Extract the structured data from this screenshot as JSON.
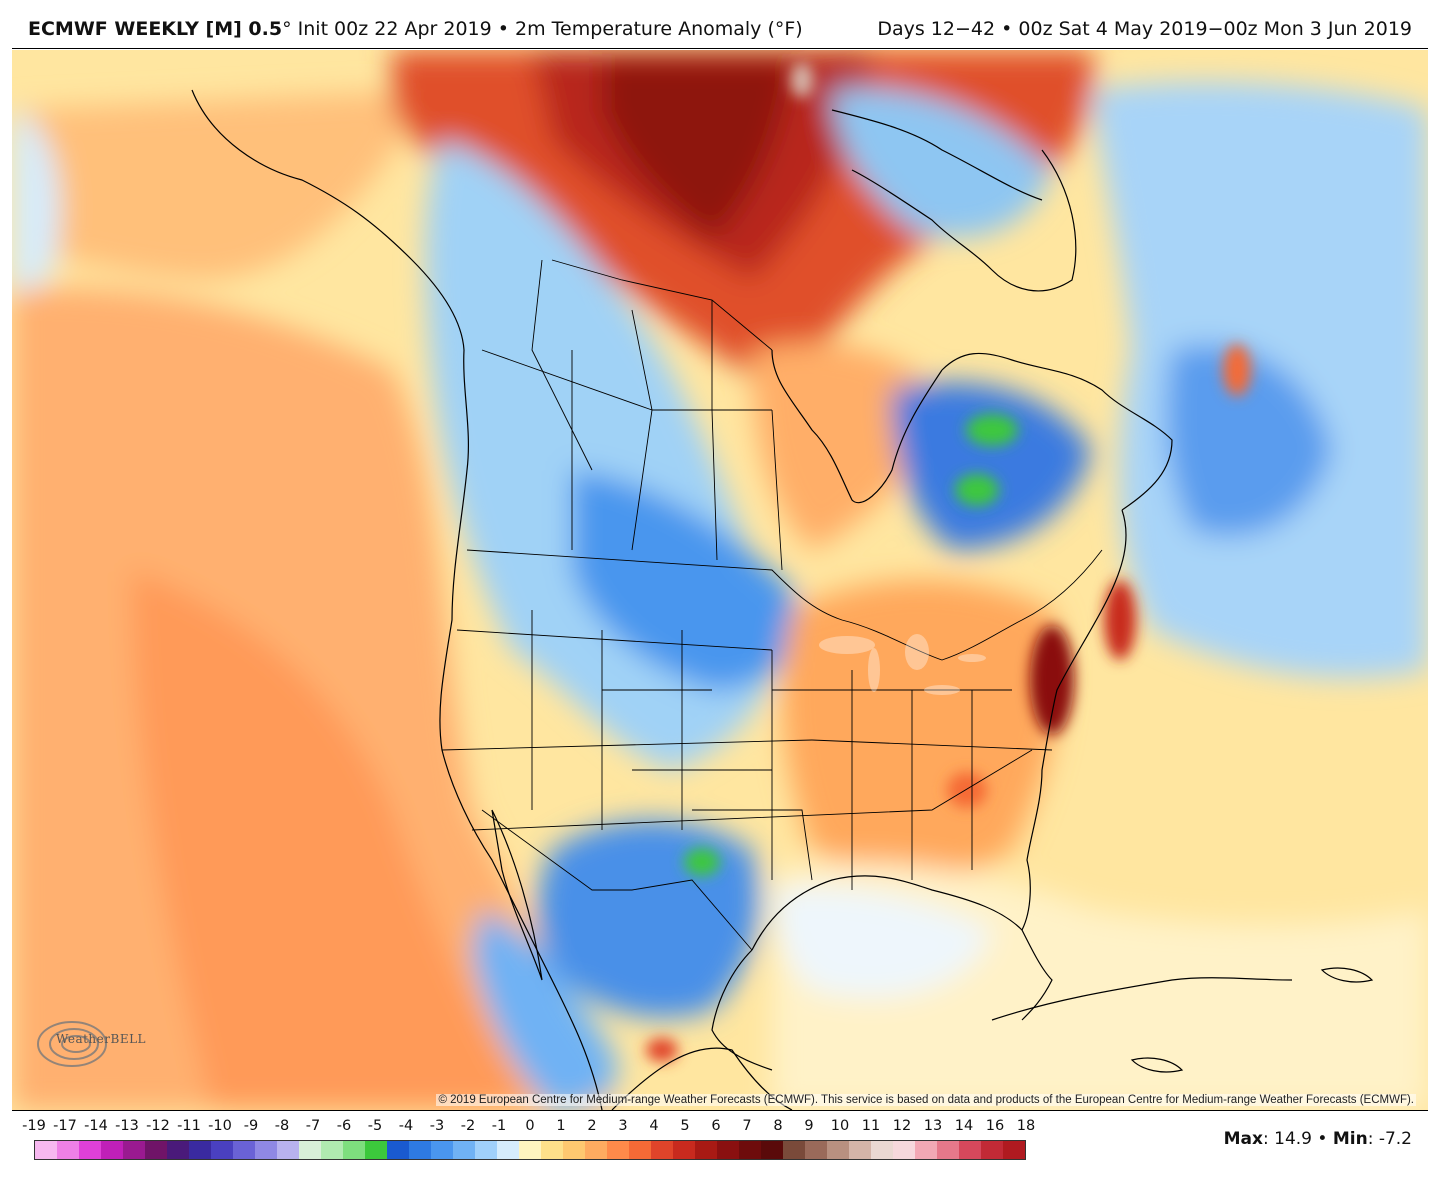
{
  "header": {
    "model": "ECMWF WEEKLY [M] 0.5",
    "degree": "°",
    "init": "Init 00z 22 Apr 2019",
    "sep1": "•",
    "variable": "2m Temperature Anomaly (°F)",
    "days": "Days 12−42",
    "sep2": "•",
    "valid": "00z Sat 4 May 2019−00z Mon 3 Jun 2019"
  },
  "credit": "© 2019 European Centre for Medium-range Weather Forecasts (ECMWF). This service is based on data and products of the European Centre for Medium-range Weather Forecasts (ECMWF).",
  "logo_text": "WeatherBELL",
  "colorbar": {
    "labels": [
      "-19",
      "-17",
      "-14",
      "-13",
      "-12",
      "-11",
      "-10",
      "-9",
      "-8",
      "-7",
      "-6",
      "-5",
      "-4",
      "-3",
      "-2",
      "-1",
      "0",
      "1",
      "2",
      "3",
      "4",
      "5",
      "6",
      "7",
      "8",
      "9",
      "10",
      "11",
      "12",
      "13",
      "14",
      "16",
      "18"
    ],
    "colors": [
      "#f7b8f0",
      "#ee80e6",
      "#e040d8",
      "#c020b8",
      "#9a1a90",
      "#701468",
      "#4a1a7a",
      "#3a2aa0",
      "#4a40c0",
      "#6a62d6",
      "#8f88e4",
      "#b8b2ee",
      "#d8f0d8",
      "#b0eab0",
      "#7ede7e",
      "#3cc83c",
      "#1a5ad0",
      "#2e7ae2",
      "#4a96ee",
      "#70b2f4",
      "#a0d0fa",
      "#d6ecfc",
      "#fff4c0",
      "#ffe08a",
      "#ffc870",
      "#ffab60",
      "#ff8a4a",
      "#f56a36",
      "#e0442a",
      "#c82a1e",
      "#a81a14",
      "#8a1010",
      "#6e0c0c"
    ],
    "colors_warm_tail": [
      "#5a0a0a",
      "#7a4a3a",
      "#9a6a5a",
      "#b89080",
      "#d4b4a8",
      "#ead8d2",
      "#f6d8dc",
      "#f2a8b4",
      "#e6788a",
      "#d6485c",
      "#c22a36",
      "#b01a20"
    ]
  },
  "stats": {
    "max_label": "Max",
    "max_value": ": 14.9",
    "sep": " • ",
    "min_label": "Min",
    "min_value": ": -7.2"
  }
}
